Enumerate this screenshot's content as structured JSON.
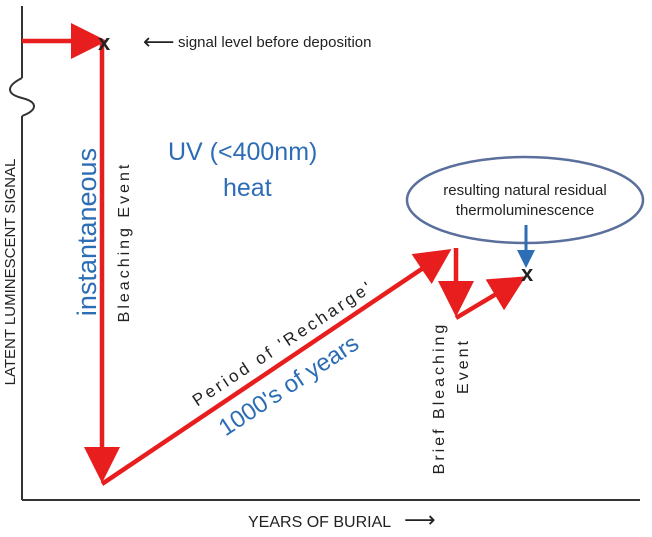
{
  "axes": {
    "y_label": "LATENT LUMINESCENT SIGNAL",
    "x_label": "YEARS OF BURIAL",
    "x_arrow": "⟶"
  },
  "annotations": {
    "signal_before": "signal level before deposition",
    "signal_before_arrow": "⟵",
    "marker": "x",
    "instantaneous": "instantaneous",
    "bleaching_event": "Bleaching Event",
    "uv_line1": "UV (<400nm)",
    "uv_line2": "heat",
    "recharge": "Period of 'Recharge'",
    "years": "1000's of years",
    "brief_line1": "Brief Bleaching",
    "brief_line2": "Event",
    "residual_line1": "resulting natural residual",
    "residual_line2": "thermoluminescence"
  },
  "colors": {
    "arrow": "#e81e1e",
    "blue_text": "#2c6db5",
    "ellipse_stroke": "#5a6f9c",
    "axis": "#333333"
  }
}
